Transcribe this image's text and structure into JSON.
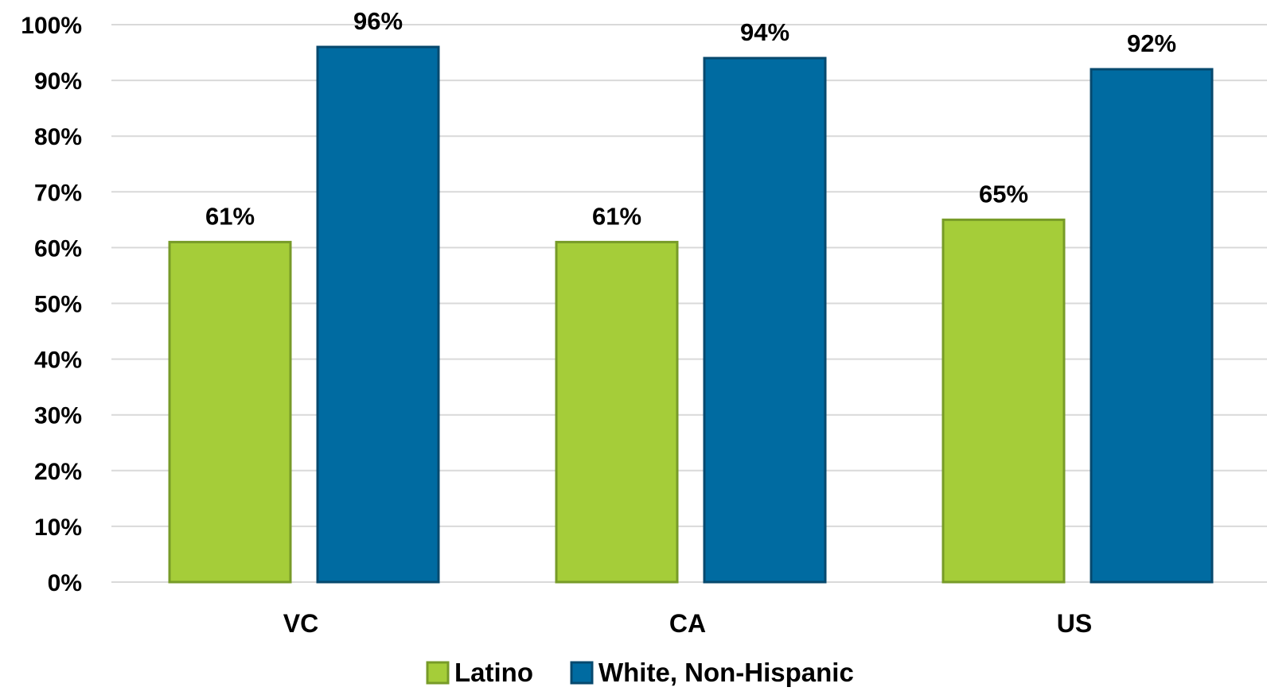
{
  "chart_data": {
    "type": "bar",
    "title": "",
    "xlabel": "",
    "ylabel": "",
    "categories": [
      "VC",
      "CA",
      "US"
    ],
    "series": [
      {
        "name": "Latino",
        "values": [
          61,
          61,
          65
        ],
        "labels": [
          "61%",
          "61%",
          "65%"
        ],
        "fill": "#a5cd39",
        "stroke": "#779b28"
      },
      {
        "name": "White, Non-Hispanic",
        "values": [
          96,
          94,
          92
        ],
        "labels": [
          "96%",
          "94%",
          "92%"
        ],
        "fill": "#006ba1",
        "stroke": "#07496e"
      }
    ],
    "ylim": [
      0,
      100
    ],
    "yticks": [
      0,
      10,
      20,
      30,
      40,
      50,
      60,
      70,
      80,
      90,
      100
    ],
    "ytick_labels": [
      "0%",
      "10%",
      "20%",
      "30%",
      "40%",
      "50%",
      "60%",
      "70%",
      "80%",
      "90%",
      "100%"
    ],
    "grid": true,
    "legend_position": "bottom"
  }
}
